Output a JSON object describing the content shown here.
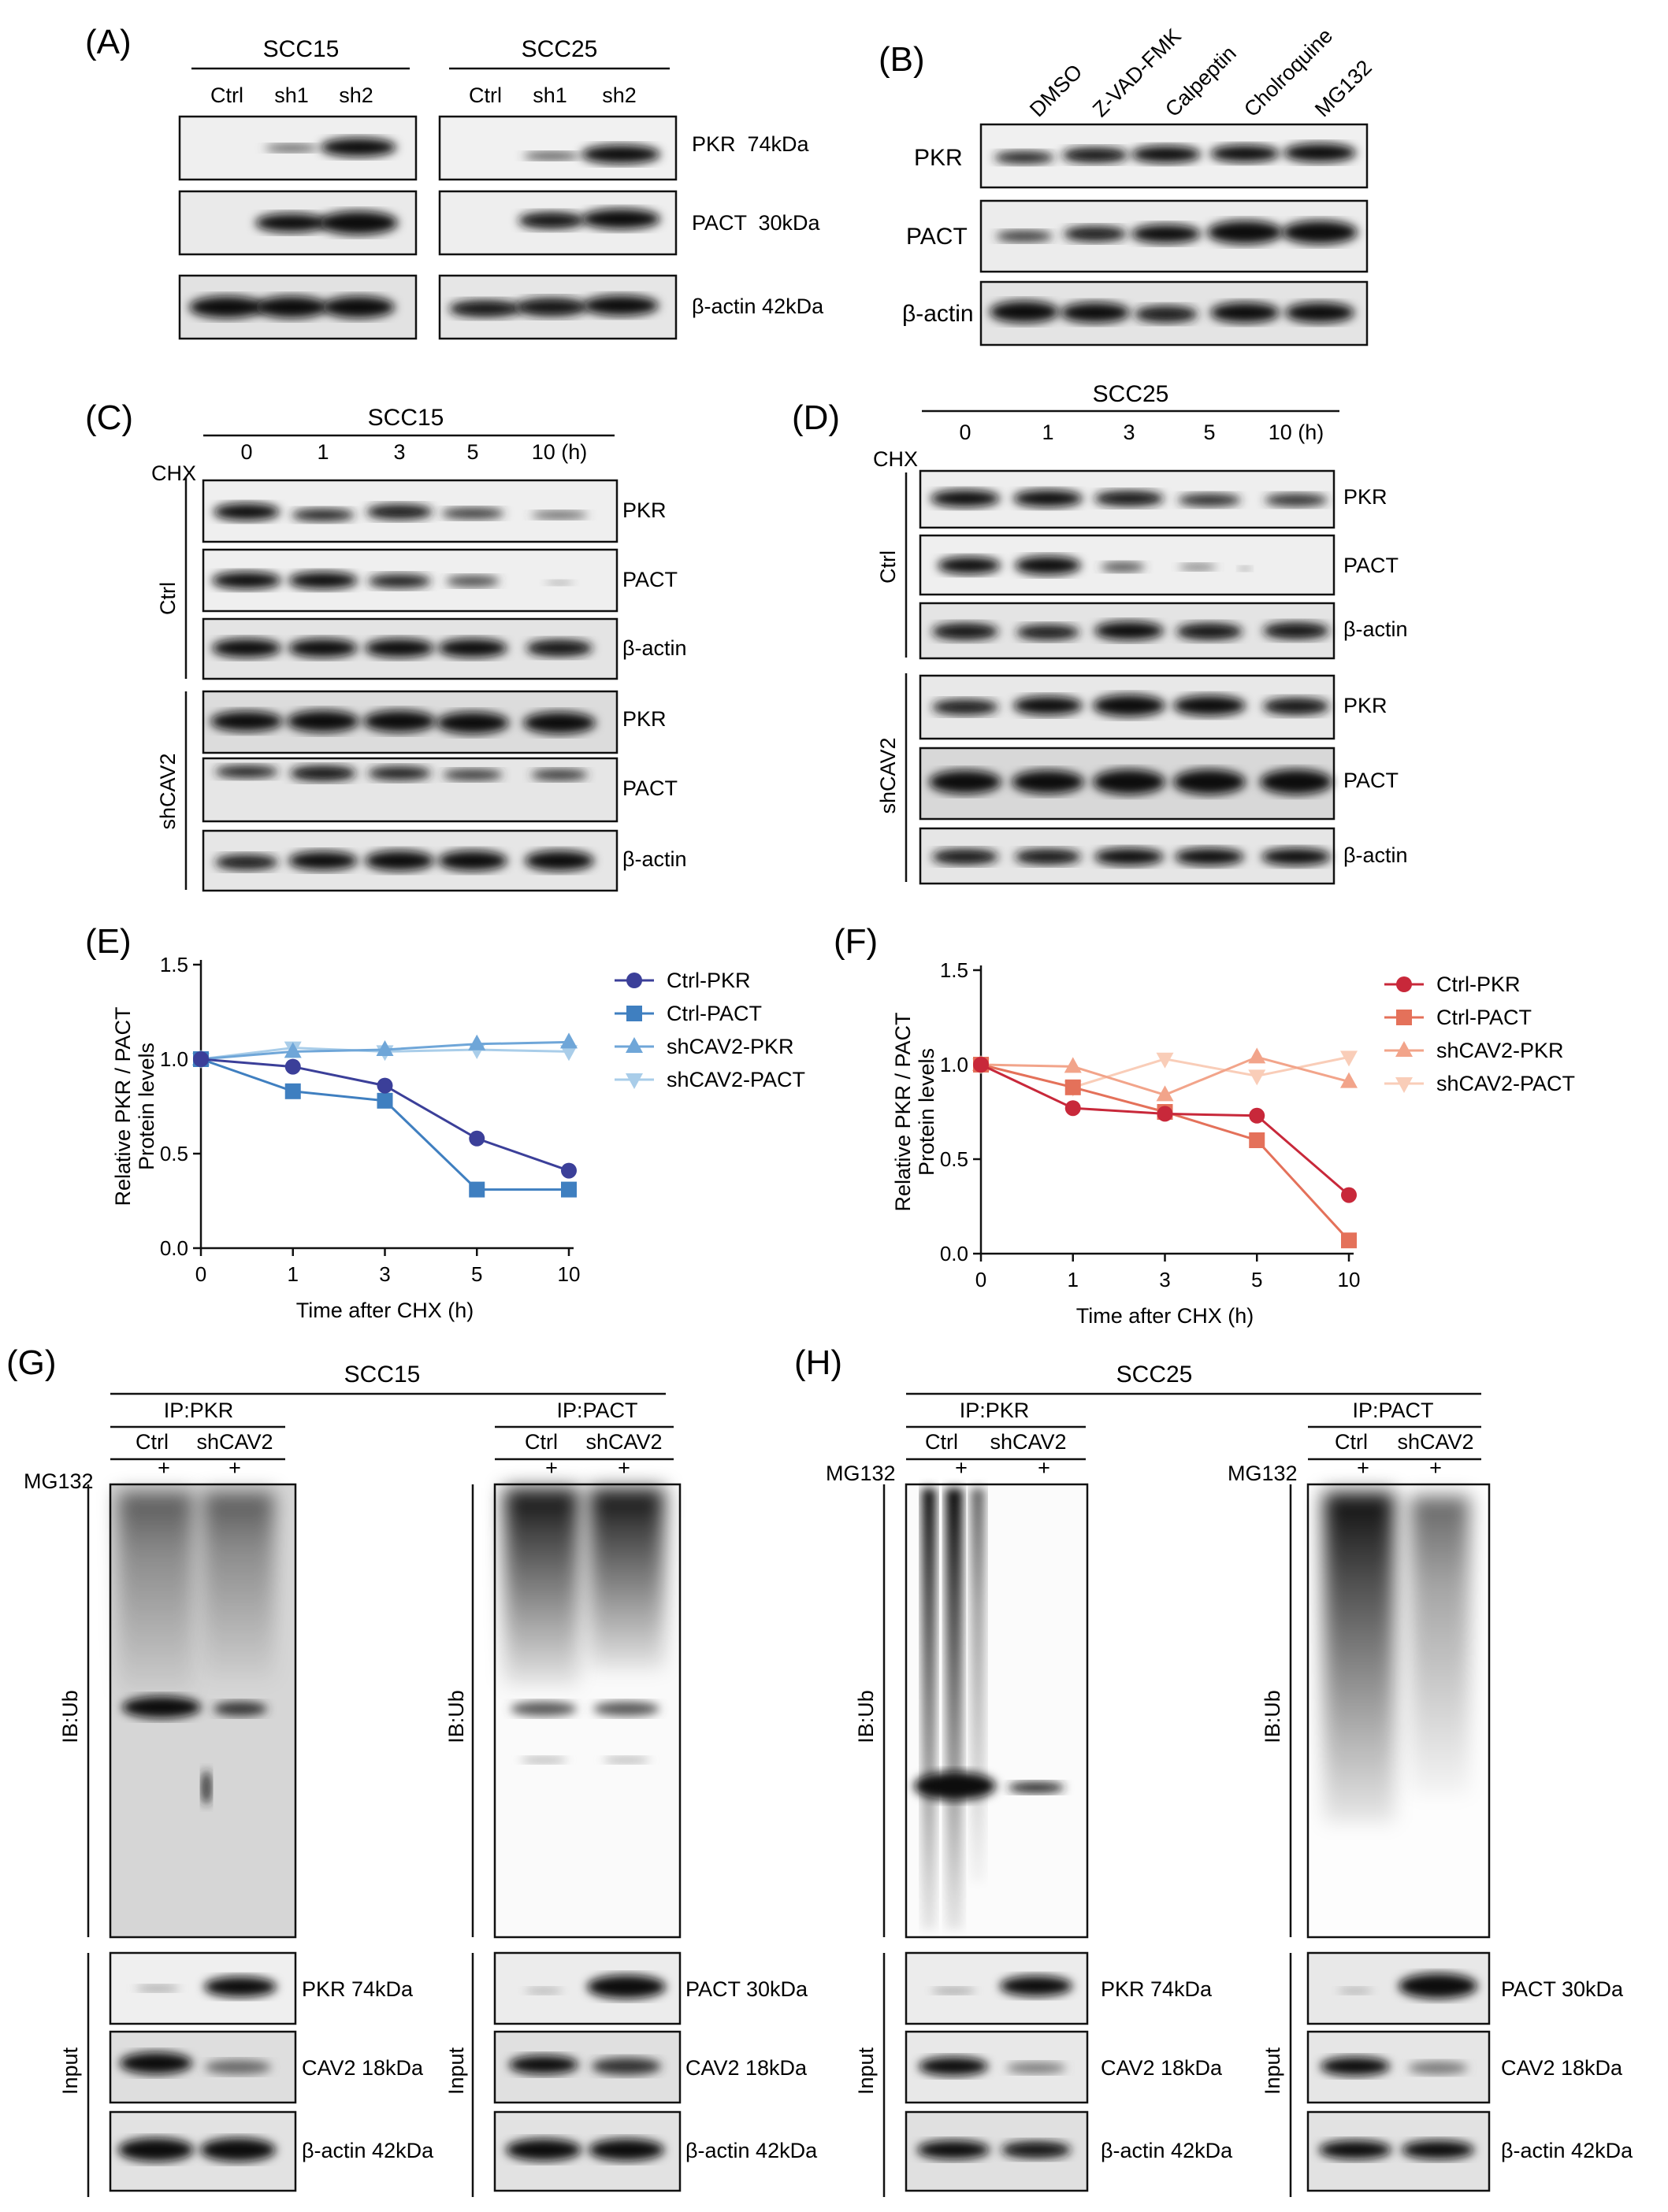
{
  "panels": {
    "A": {
      "label": "(A)",
      "groups": [
        "SCC15",
        "SCC25"
      ],
      "lanes": [
        "Ctrl",
        "sh1",
        "sh2"
      ],
      "rows": [
        "PKR  74kDa",
        "PACT  30kDa",
        "β-actin 42kDa"
      ]
    },
    "B": {
      "label": "(B)",
      "lanes": [
        "DMSO",
        "Z-VAD-FMK",
        "Calpeptin",
        "Cholroquine",
        "MG132"
      ],
      "rows": [
        "PKR",
        "PACT",
        "β-actin"
      ]
    },
    "C": {
      "label": "(C)",
      "title": "SCC15",
      "timepoints": [
        "0",
        "1",
        "3",
        "5",
        "10 (h)"
      ],
      "treatment": "CHX",
      "groups": [
        "Ctrl",
        "shCAV2"
      ],
      "rows": [
        "PKR",
        "PACT",
        "β-actin"
      ]
    },
    "D": {
      "label": "(D)",
      "title": "SCC25",
      "timepoints": [
        "0",
        "1",
        "3",
        "5",
        "10 (h)"
      ],
      "treatment": "CHX",
      "groups": [
        "Ctrl",
        "shCAV2"
      ],
      "rows": [
        "PKR",
        "PACT",
        "β-actin"
      ]
    },
    "E": {
      "label": "(E)"
    },
    "F": {
      "label": "(F)"
    },
    "G": {
      "label": "(G)",
      "title": "SCC15",
      "ip_left": "IP:PKR",
      "ip_right": "IP:PACT",
      "lanes": [
        "Ctrl",
        "shCAV2"
      ],
      "treatment": "MG132",
      "plus": "+",
      "ib": "IB:Ub",
      "input": "Input",
      "rows_left": [
        "PKR 74kDa",
        "CAV2 18kDa",
        "β-actin 42kDa"
      ],
      "rows_right": [
        "PACT 30kDa",
        "CAV2 18kDa",
        "β-actin 42kDa"
      ]
    },
    "H": {
      "label": "(H)",
      "title": "SCC25",
      "ip_left": "IP:PKR",
      "ip_right": "IP:PACT",
      "lanes": [
        "Ctrl",
        "shCAV2"
      ],
      "treatment": "MG132",
      "plus": "+",
      "ib": "IB:Ub",
      "input": "Input",
      "rows_left": [
        "PKR 74kDa",
        "CAV2 18kDa",
        "β-actin 42kDa"
      ],
      "rows_right": [
        "PACT 30kDa",
        "CAV2 18kDa",
        "β-actin 42kDa"
      ]
    }
  },
  "chart_data": [
    {
      "panel": "E",
      "type": "line",
      "x": [
        0,
        1,
        3,
        5,
        10
      ],
      "xticks": [
        "0",
        "1",
        "3",
        "5",
        "10"
      ],
      "xlabel": "Time after CHX (h)",
      "ylabel": "Relative PKR / PACT",
      "ylabel2": "Protein levels",
      "ylim": [
        0,
        1.5
      ],
      "yticks": [
        "0.0",
        "0.5",
        "1.0",
        "1.5"
      ],
      "legend_position": "top-right",
      "series": [
        {
          "name": "Ctrl-PKR",
          "marker": "circle",
          "color": "#3b3f99",
          "values": [
            1.0,
            0.96,
            0.86,
            0.58,
            0.41
          ]
        },
        {
          "name": "Ctrl-PACT",
          "marker": "square",
          "color": "#3f7fc0",
          "values": [
            1.0,
            0.83,
            0.78,
            0.31,
            0.31
          ]
        },
        {
          "name": "shCAV2-PKR",
          "marker": "triangle-up",
          "color": "#6fa6d8",
          "values": [
            1.0,
            1.04,
            1.05,
            1.08,
            1.09
          ]
        },
        {
          "name": "shCAV2-PACT",
          "marker": "triangle-down",
          "color": "#a9cde9",
          "values": [
            1.0,
            1.06,
            1.04,
            1.05,
            1.04
          ]
        }
      ]
    },
    {
      "panel": "F",
      "type": "line",
      "x": [
        0,
        1,
        3,
        5,
        10
      ],
      "xticks": [
        "0",
        "1",
        "3",
        "5",
        "10"
      ],
      "xlabel": "Time after CHX (h)",
      "ylabel": "Relative PKR / PACT",
      "ylabel2": "Protein levels",
      "ylim": [
        0,
        1.5
      ],
      "yticks": [
        "0.0",
        "0.5",
        "1.0",
        "1.5"
      ],
      "legend_position": "top-right",
      "series": [
        {
          "name": "Ctrl-PKR",
          "marker": "circle",
          "color": "#c8283a",
          "values": [
            1.0,
            0.77,
            0.74,
            0.73,
            0.31
          ]
        },
        {
          "name": "Ctrl-PACT",
          "marker": "square",
          "color": "#e4715a",
          "values": [
            1.0,
            0.88,
            0.75,
            0.6,
            0.07
          ]
        },
        {
          "name": "shCAV2-PKR",
          "marker": "triangle-up",
          "color": "#f2a48a",
          "values": [
            1.0,
            0.99,
            0.84,
            1.04,
            0.91
          ]
        },
        {
          "name": "shCAV2-PACT",
          "marker": "triangle-down",
          "color": "#f9cdb8",
          "values": [
            1.0,
            0.88,
            1.03,
            0.94,
            1.04
          ]
        }
      ]
    }
  ]
}
